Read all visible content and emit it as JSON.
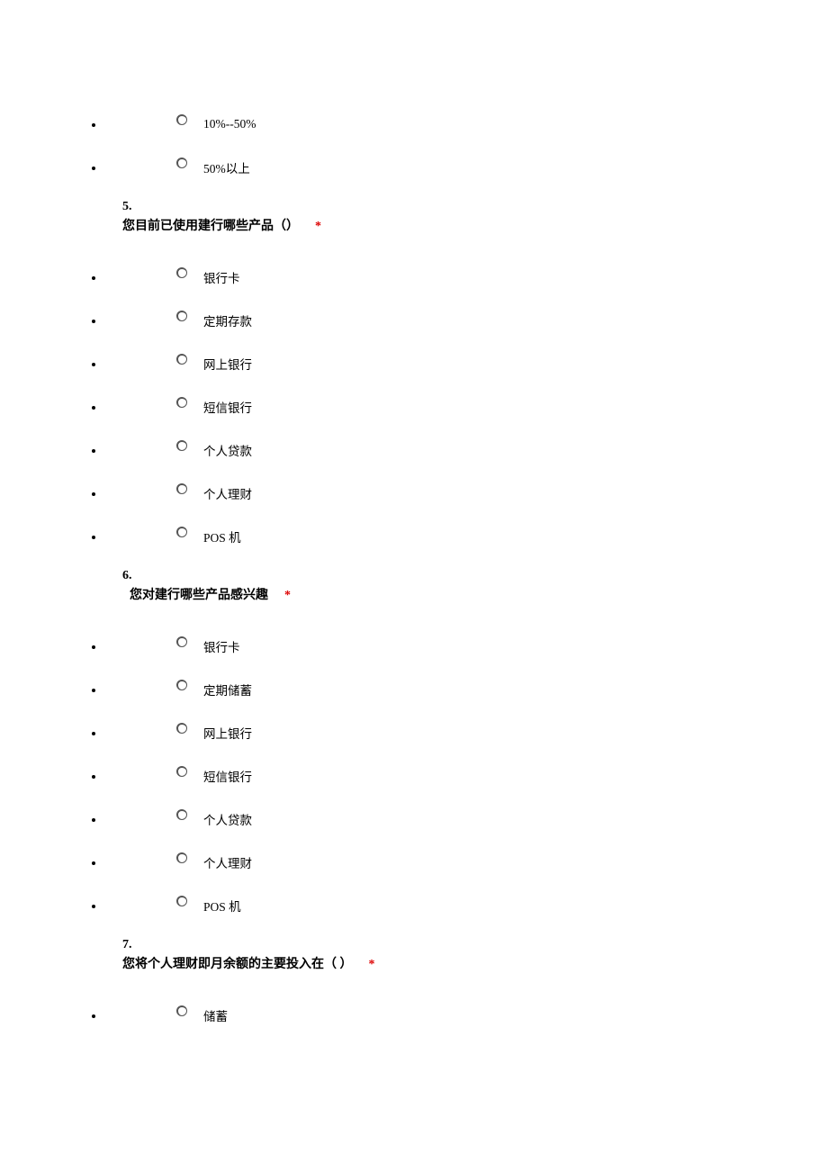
{
  "colors": {
    "background": "#ffffff",
    "text": "#000000",
    "required": "#dd0000",
    "radio_border": "#555555"
  },
  "typography": {
    "font_family": "SimSun",
    "option_fontsize": 13.5,
    "question_fontsize": 14,
    "question_fontweight": "bold"
  },
  "prev_options": [
    {
      "label": "10%--50%"
    },
    {
      "label": "50%以上"
    }
  ],
  "q5": {
    "number": "5.",
    "text": "您目前已使用建行哪些产品（）",
    "required": "*",
    "options": [
      {
        "label": "银行卡"
      },
      {
        "label": "定期存款"
      },
      {
        "label": "网上银行"
      },
      {
        "label": "短信银行"
      },
      {
        "label": "个人贷款"
      },
      {
        "label": "个人理财"
      },
      {
        "label": "POS 机"
      }
    ]
  },
  "q6": {
    "number": "6.",
    "text": "您对建行哪些产品感兴趣",
    "required": "*",
    "options": [
      {
        "label": "银行卡"
      },
      {
        "label": "定期储蓄"
      },
      {
        "label": "网上银行"
      },
      {
        "label": "短信银行"
      },
      {
        "label": "个人贷款"
      },
      {
        "label": "个人理财"
      },
      {
        "label": "POS 机"
      }
    ]
  },
  "q7": {
    "number": "7.",
    "text": "您将个人理财即月余额的主要投入在（ ）",
    "required": "*",
    "options": [
      {
        "label": "储蓄"
      }
    ]
  }
}
